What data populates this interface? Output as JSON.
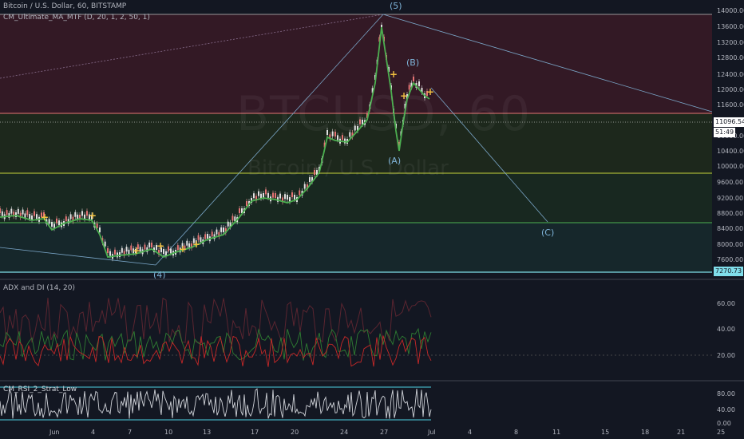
{
  "header": {
    "symbol_title": "Bitcoin / U.S. Dollar, 60, BITSTAMP",
    "indicator": "CM_Ultimate_MA_MTF (D, 20, 1, 2, 50, 1)"
  },
  "watermark": {
    "ticker": "BTCUSD, 60",
    "name": "Bitcoin / U.S. Dollar"
  },
  "price_axis": [
    "14000.00",
    "13600.00",
    "13200.00",
    "12800.00",
    "12400.00",
    "12000.00",
    "11600.00",
    "10800.00",
    "10400.00",
    "10000.00",
    "9600.00",
    "9200.00",
    "8800.00",
    "8400.00",
    "8000.00",
    "7600.00"
  ],
  "price_tags": {
    "last_price": "11096.54",
    "countdown": "51:49",
    "low_level": "7270.73"
  },
  "wave_labels": {
    "w5": "(5)",
    "w4": "(4)",
    "wa": "(A)",
    "wb": "(B)",
    "wc": "(C)"
  },
  "adx_pane": {
    "title": "ADX and DI (14, 20)",
    "axis": [
      "60.00",
      "40.00",
      "20.00"
    ]
  },
  "stoch_pane": {
    "title": "CM_RSI_2_Strat_Low",
    "axis": [
      "80.00",
      "40.00",
      "0.00"
    ]
  },
  "time_axis": [
    "Jun",
    "4",
    "7",
    "10",
    "13",
    "17",
    "20",
    "24",
    "27",
    "Jul",
    "4",
    "8",
    "11",
    "15",
    "18",
    "21",
    "25"
  ],
  "colors": {
    "accent_up": "#26a69a",
    "accent_down": "#ef5350",
    "ma_green": "#4caf50",
    "ma_red": "#e53935"
  }
}
